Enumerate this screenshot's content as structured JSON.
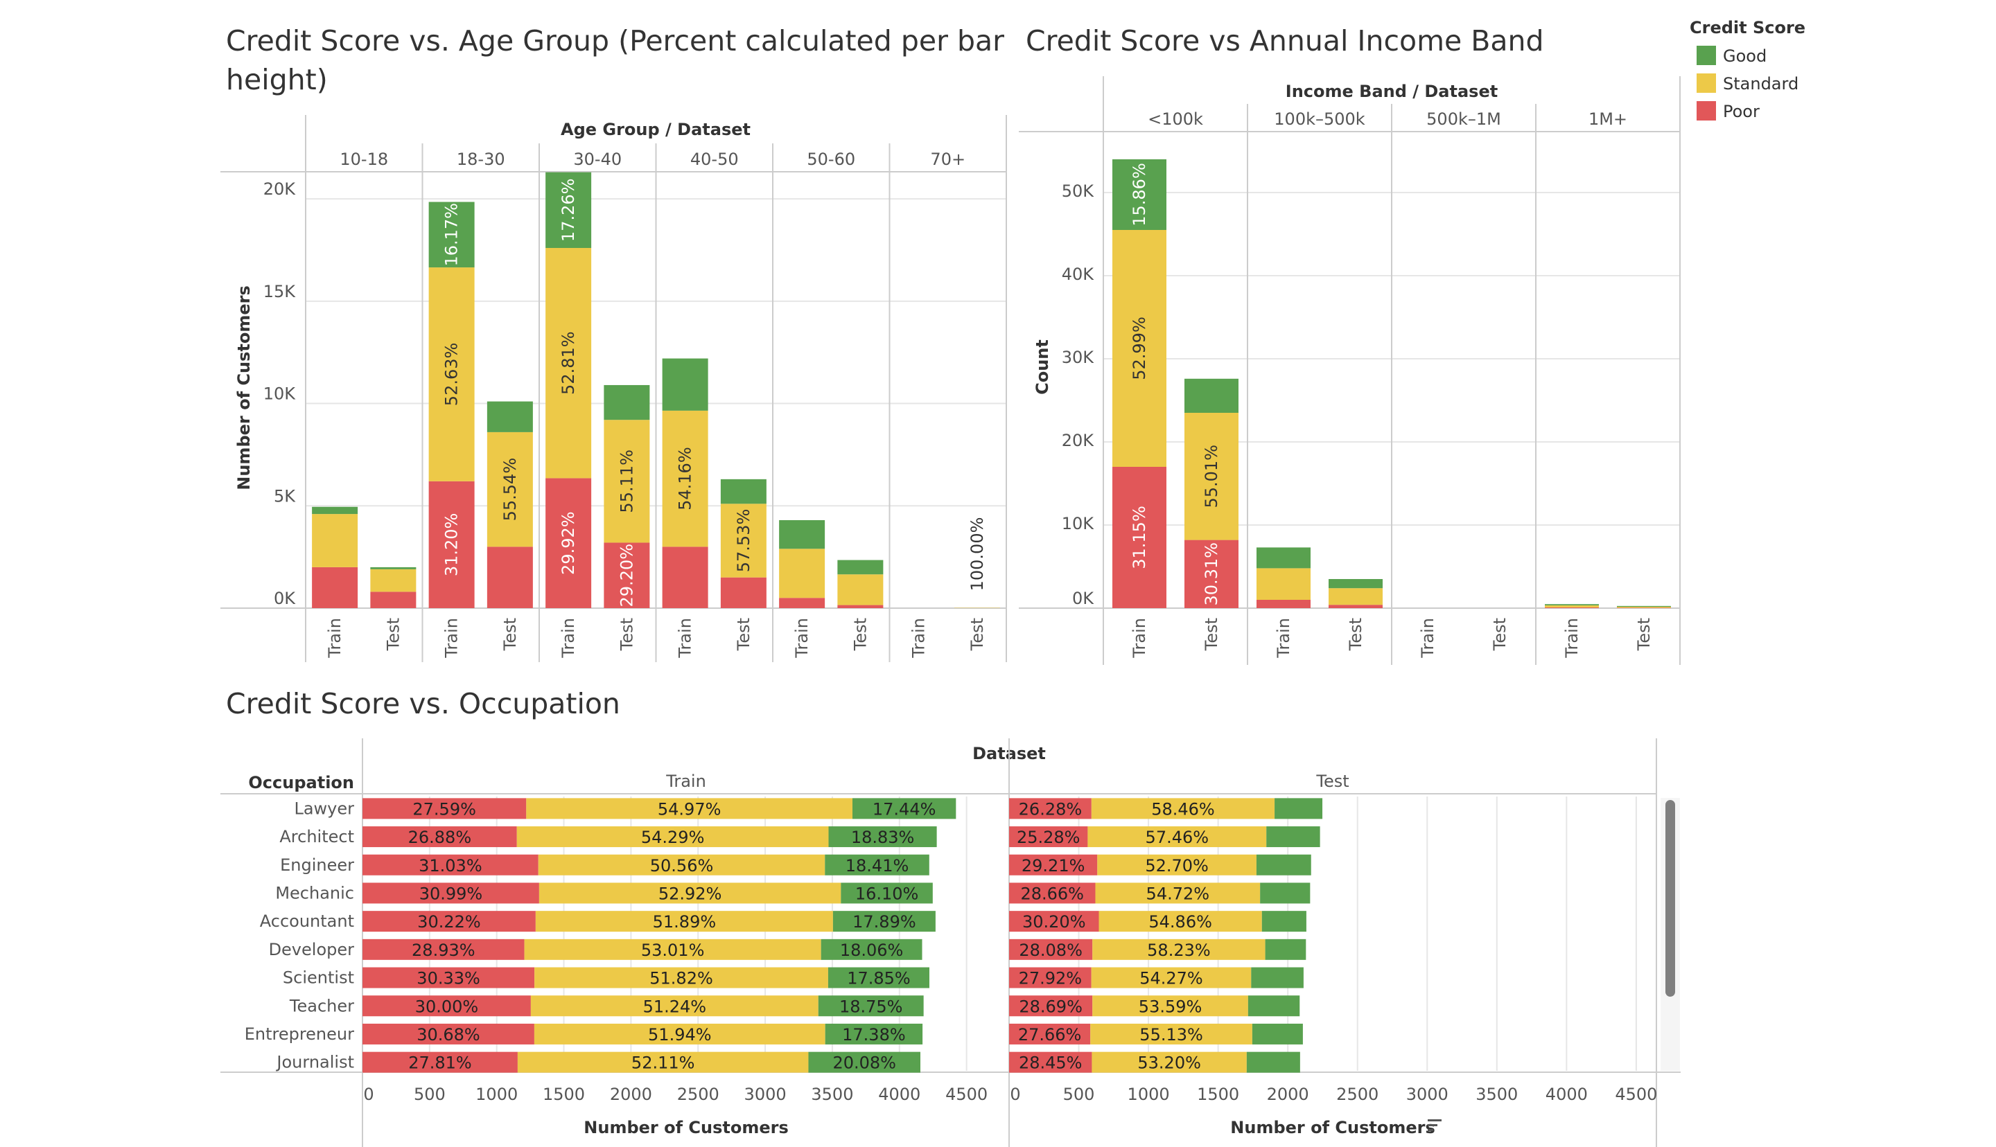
{
  "colors": {
    "Good": "#59A14F",
    "Standard": "#EDC948",
    "Poor": "#E15759",
    "grid": "#e6e6e6",
    "axis": "#cccccc"
  },
  "legend": {
    "title": "Credit Score",
    "items": [
      "Good",
      "Standard",
      "Poor"
    ]
  },
  "chart_data": [
    {
      "type": "bar",
      "stacked": true,
      "title_lines": [
        "Credit Score vs. Age Group (Percent calculated per bar",
        "height)"
      ],
      "header_title": "Age Group  /  Dataset",
      "ylabel": "Number of Customers",
      "ylim": [
        0,
        22000
      ],
      "yticks": [
        0,
        5000,
        10000,
        15000,
        20000
      ],
      "ytick_labels": [
        "0K",
        "5K",
        "10K",
        "15K",
        "20K"
      ],
      "groups": [
        "10-18",
        "18-30",
        "30-40",
        "40-50",
        "50-60",
        "70+"
      ],
      "subcategories": [
        "Train",
        "Test"
      ],
      "series_order": [
        "Poor",
        "Standard",
        "Good"
      ],
      "bars": [
        {
          "group": "10-18",
          "dataset": "Train",
          "Poor": 2000,
          "Standard": 2600,
          "Good": 350
        },
        {
          "group": "10-18",
          "dataset": "Test",
          "Poor": 800,
          "Standard": 1100,
          "Good": 100
        },
        {
          "group": "18-30",
          "dataset": "Train",
          "Poor": 6200,
          "Standard": 10450,
          "Good": 3200
        },
        {
          "group": "18-30",
          "dataset": "Test",
          "Poor": 3000,
          "Standard": 5600,
          "Good": 1500
        },
        {
          "group": "30-40",
          "dataset": "Train",
          "Poor": 6350,
          "Standard": 11250,
          "Good": 3700
        },
        {
          "group": "30-40",
          "dataset": "Test",
          "Poor": 3200,
          "Standard": 6000,
          "Good": 1700
        },
        {
          "group": "40-50",
          "dataset": "Train",
          "Poor": 3000,
          "Standard": 6650,
          "Good": 2550
        },
        {
          "group": "40-50",
          "dataset": "Test",
          "Poor": 1500,
          "Standard": 3600,
          "Good": 1200
        },
        {
          "group": "50-60",
          "dataset": "Train",
          "Poor": 500,
          "Standard": 2400,
          "Good": 1400
        },
        {
          "group": "50-60",
          "dataset": "Test",
          "Poor": 150,
          "Standard": 1500,
          "Good": 700
        },
        {
          "group": "70+",
          "dataset": "Train",
          "Poor": 0,
          "Standard": 0,
          "Good": 0
        },
        {
          "group": "70+",
          "dataset": "Test",
          "Poor": 0,
          "Standard": 15,
          "Good": 0
        }
      ],
      "annotations": [
        {
          "bar": 2,
          "series": "Poor",
          "text": "31.20%"
        },
        {
          "bar": 2,
          "series": "Standard",
          "text": "52.63%"
        },
        {
          "bar": 2,
          "series": "Good",
          "text": "16.17%"
        },
        {
          "bar": 3,
          "series": "Standard",
          "text": "55.54%"
        },
        {
          "bar": 4,
          "series": "Poor",
          "text": "29.92%"
        },
        {
          "bar": 4,
          "series": "Standard",
          "text": "52.81%"
        },
        {
          "bar": 4,
          "series": "Good",
          "text": "17.26%"
        },
        {
          "bar": 5,
          "series": "Poor",
          "text": "29.20%"
        },
        {
          "bar": 5,
          "series": "Standard",
          "text": "55.11%"
        },
        {
          "bar": 6,
          "series": "Standard",
          "text": "54.16%"
        },
        {
          "bar": 7,
          "series": "Standard",
          "text": "57.53%"
        },
        {
          "bar": 11,
          "series": "Standard",
          "text": "100.00%"
        }
      ]
    },
    {
      "type": "bar",
      "stacked": true,
      "title_lines": [
        "Credit Score vs Annual Income Band"
      ],
      "header_title": "Income Band  /  Dataset",
      "ylabel": "Count",
      "ylim": [
        0,
        55000
      ],
      "yticks": [
        0,
        10000,
        20000,
        30000,
        40000,
        50000
      ],
      "ytick_labels": [
        "0K",
        "10K",
        "20K",
        "30K",
        "40K",
        "50K"
      ],
      "groups": [
        "<100k",
        "100k–500k",
        "500k–1M",
        "1M+"
      ],
      "subcategories": [
        "Train",
        "Test"
      ],
      "series_order": [
        "Poor",
        "Standard",
        "Good"
      ],
      "bars": [
        {
          "group": "<100k",
          "dataset": "Train",
          "Poor": 17000,
          "Standard": 28500,
          "Good": 8500
        },
        {
          "group": "<100k",
          "dataset": "Test",
          "Poor": 8200,
          "Standard": 15300,
          "Good": 4100
        },
        {
          "group": "100k–500k",
          "dataset": "Train",
          "Poor": 1000,
          "Standard": 3800,
          "Good": 2500
        },
        {
          "group": "100k–500k",
          "dataset": "Test",
          "Poor": 400,
          "Standard": 2000,
          "Good": 1100
        },
        {
          "group": "500k–1M",
          "dataset": "Train",
          "Poor": 0,
          "Standard": 0,
          "Good": 0
        },
        {
          "group": "500k–1M",
          "dataset": "Test",
          "Poor": 0,
          "Standard": 0,
          "Good": 0
        },
        {
          "group": "1M+",
          "dataset": "Train",
          "Poor": 80,
          "Standard": 250,
          "Good": 150
        },
        {
          "group": "1M+",
          "dataset": "Test",
          "Poor": 40,
          "Standard": 120,
          "Good": 100
        }
      ],
      "annotations": [
        {
          "bar": 0,
          "series": "Poor",
          "text": "31.15%"
        },
        {
          "bar": 0,
          "series": "Standard",
          "text": "52.99%"
        },
        {
          "bar": 0,
          "series": "Good",
          "text": "15.86%"
        },
        {
          "bar": 1,
          "series": "Poor",
          "text": "30.31%"
        },
        {
          "bar": 1,
          "series": "Standard",
          "text": "55.01%"
        }
      ]
    },
    {
      "type": "bar",
      "orientation": "horizontal",
      "stacked": true,
      "title": "Credit Score vs. Occupation",
      "header_title": "Dataset",
      "row_header": "Occupation",
      "xlabel": "Number of Customers",
      "xlim": [
        0,
        4600
      ],
      "xticks": [
        0,
        500,
        1000,
        1500,
        2000,
        2500,
        3000,
        3500,
        4000,
        4500
      ],
      "panels": [
        "Train",
        "Test"
      ],
      "categories": [
        "Lawyer",
        "Architect",
        "Engineer",
        "Mechanic",
        "Accountant",
        "Developer",
        "Scientist",
        "Teacher",
        "Entrepreneur",
        "Journalist"
      ],
      "series_order": [
        "Poor",
        "Standard",
        "Good"
      ],
      "train": [
        {
          "Poor": 1220,
          "Standard": 2430,
          "Good": 771,
          "labels": [
            "27.59%",
            "54.97%",
            "17.44%"
          ]
        },
        {
          "Poor": 1150,
          "Standard": 2322,
          "Good": 806,
          "labels": [
            "26.88%",
            "54.29%",
            "18.83%"
          ]
        },
        {
          "Poor": 1310,
          "Standard": 2135,
          "Good": 777,
          "labels": [
            "31.03%",
            "50.56%",
            "18.41%"
          ]
        },
        {
          "Poor": 1316,
          "Standard": 2248,
          "Good": 684,
          "labels": [
            "30.99%",
            "52.92%",
            "16.10%"
          ]
        },
        {
          "Poor": 1290,
          "Standard": 2215,
          "Good": 764,
          "labels": [
            "30.22%",
            "51.89%",
            "17.89%"
          ]
        },
        {
          "Poor": 1206,
          "Standard": 2210,
          "Good": 753,
          "labels": [
            "28.93%",
            "53.01%",
            "18.06%"
          ]
        },
        {
          "Poor": 1281,
          "Standard": 2188,
          "Good": 754,
          "labels": [
            "30.33%",
            "51.82%",
            "17.85%"
          ]
        },
        {
          "Poor": 1254,
          "Standard": 2142,
          "Good": 784,
          "labels": [
            "30.00%",
            "51.24%",
            "18.75%"
          ]
        },
        {
          "Poor": 1280,
          "Standard": 2167,
          "Good": 725,
          "labels": [
            "30.68%",
            "51.94%",
            "17.38%"
          ]
        },
        {
          "Poor": 1156,
          "Standard": 2166,
          "Good": 834,
          "labels": [
            "27.81%",
            "52.11%",
            "20.08%"
          ]
        }
      ],
      "test": [
        {
          "Poor": 591,
          "Standard": 1314,
          "Good": 343,
          "labels": [
            "26.28%",
            "58.46%",
            ""
          ]
        },
        {
          "Poor": 564,
          "Standard": 1282,
          "Good": 385,
          "labels": [
            "25.28%",
            "57.46%",
            ""
          ]
        },
        {
          "Poor": 633,
          "Standard": 1142,
          "Good": 392,
          "labels": [
            "29.21%",
            "52.70%",
            ""
          ]
        },
        {
          "Poor": 619,
          "Standard": 1182,
          "Good": 359,
          "labels": [
            "28.66%",
            "54.72%",
            ""
          ]
        },
        {
          "Poor": 644,
          "Standard": 1170,
          "Good": 319,
          "labels": [
            "30.20%",
            "54.86%",
            ""
          ]
        },
        {
          "Poor": 598,
          "Standard": 1240,
          "Good": 292,
          "labels": [
            "28.08%",
            "58.23%",
            ""
          ]
        },
        {
          "Poor": 590,
          "Standard": 1147,
          "Good": 376,
          "labels": [
            "27.92%",
            "54.27%",
            ""
          ]
        },
        {
          "Poor": 598,
          "Standard": 1117,
          "Good": 370,
          "labels": [
            "28.69%",
            "53.59%",
            ""
          ]
        },
        {
          "Poor": 583,
          "Standard": 1162,
          "Good": 363,
          "labels": [
            "27.66%",
            "55.13%",
            ""
          ]
        },
        {
          "Poor": 594,
          "Standard": 1111,
          "Good": 383,
          "labels": [
            "28.45%",
            "53.20%",
            ""
          ]
        }
      ]
    }
  ]
}
